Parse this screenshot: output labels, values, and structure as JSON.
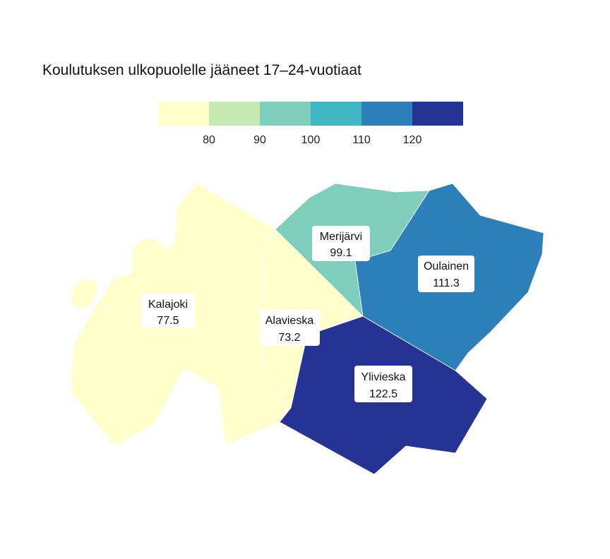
{
  "title": "Koulutuksen ulkopuolelle jääneet 17–24-vuotiaat",
  "legend": {
    "colors": [
      "#ffffcc",
      "#c7e9b4",
      "#7fcdbb",
      "#41b6c4",
      "#2c7fb8",
      "#253494"
    ],
    "ticks": [
      "80",
      "90",
      "100",
      "110",
      "120"
    ]
  },
  "regions": [
    {
      "name": "Kalajoki",
      "value": "77.5",
      "color": "#ffffcc"
    },
    {
      "name": "Alavieska",
      "value": "73.2",
      "color": "#ffffcc"
    },
    {
      "name": "Merijärvi",
      "value": "99.1",
      "color": "#7fcdbb"
    },
    {
      "name": "Oulainen",
      "value": "111.3",
      "color": "#2c7fb8"
    },
    {
      "name": "Ylivieska",
      "value": "122.5",
      "color": "#253494"
    }
  ]
}
